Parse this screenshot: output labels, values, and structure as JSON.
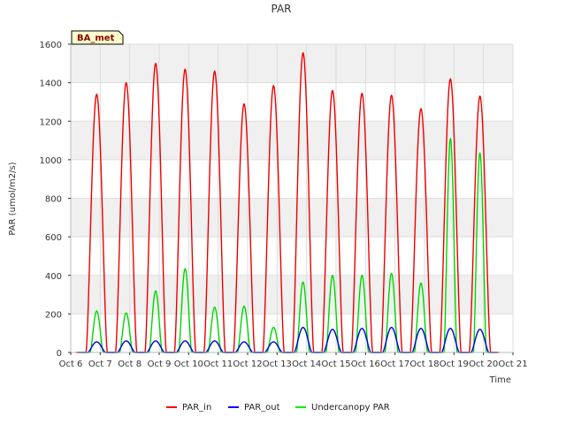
{
  "chart_data": {
    "type": "line",
    "title": "PAR",
    "xlabel": "Time",
    "ylabel": "PAR (umol/m2/s)",
    "badge": "BA_met",
    "xlim": [
      6,
      21
    ],
    "ylim": [
      0,
      1600
    ],
    "x_ticks": [
      6,
      7,
      8,
      9,
      10,
      11,
      12,
      13,
      14,
      15,
      16,
      17,
      18,
      19,
      20,
      21
    ],
    "x_tick_labels": [
      "Oct 6",
      "Oct 7",
      "Oct 8",
      "Oct 9",
      "Oct 10",
      "Oct 11",
      "Oct 12",
      "Oct 13",
      "Oct 14",
      "Oct 15",
      "Oct 16",
      "Oct 17",
      "Oct 18",
      "Oct 19",
      "Oct 20",
      "Oct 21"
    ],
    "y_ticks": [
      0,
      200,
      400,
      600,
      800,
      1000,
      1200,
      1400,
      1600
    ],
    "y_tick_labels": [
      "0",
      "200",
      "400",
      "600",
      "800",
      "1000",
      "1200",
      "1400",
      "1600"
    ],
    "day_peaks": {
      "days": [
        7,
        8,
        9,
        10,
        11,
        12,
        13,
        14,
        15,
        16,
        17,
        18,
        19,
        20
      ],
      "PAR_in": [
        1340,
        1400,
        1500,
        1470,
        1460,
        1290,
        1385,
        1555,
        1360,
        1345,
        1335,
        1265,
        1420,
        1330
      ],
      "PAR_out": [
        55,
        60,
        60,
        60,
        60,
        55,
        55,
        130,
        120,
        125,
        130,
        125,
        125,
        120
      ],
      "Undercanopy PAR": [
        215,
        205,
        320,
        435,
        235,
        240,
        130,
        365,
        400,
        400,
        410,
        360,
        1110,
        1035
      ]
    },
    "series": [
      {
        "name": "PAR_in",
        "color": "#ff0000",
        "dark_color": "#cc0000"
      },
      {
        "name": "PAR_out",
        "color": "#0000ff",
        "dark_color": "#0000aa"
      },
      {
        "name": "Undercanopy PAR",
        "color": "#00ee00",
        "dark_color": "#00aa00"
      }
    ],
    "legend_position": "bottom-center"
  }
}
